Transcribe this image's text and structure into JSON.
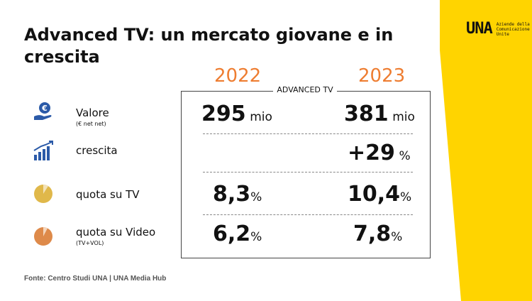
{
  "title": "Advanced TV: un mercato giovane e in crescita",
  "logo": {
    "mark": "UNA",
    "text": "Aziende della Comunicazione Unite"
  },
  "years": {
    "left": "2022",
    "right": "2023"
  },
  "box_label": "ADVANCED TV",
  "rows": [
    {
      "label": "Valore",
      "sub": "(€ net net)",
      "icon": "euro-hand-icon",
      "v2022": "295",
      "u2022": "mio",
      "v2023": "381",
      "u2023": "mio"
    },
    {
      "label": "crescita",
      "sub": "",
      "icon": "growth-bars-icon",
      "v2022": "",
      "u2022": "",
      "v2023": "+29",
      "u2023": "%"
    },
    {
      "label": "quota su TV",
      "sub": "",
      "icon": "pie-yellow-icon",
      "v2022": "8,3",
      "u2022": "%",
      "v2023": "10,4",
      "u2023": "%"
    },
    {
      "label": "quota su Video",
      "sub": "(TV+VOL)",
      "icon": "pie-orange-icon",
      "v2022": "6,2",
      "u2022": "%",
      "v2023": "7,8",
      "u2023": "%"
    }
  ],
  "source": "Fonte: Centro Studi UNA | UNA Media Hub",
  "colors": {
    "accent": "#ee7d31",
    "brand_yellow": "#ffd400",
    "icon_blue": "#2b5aa8",
    "pie_yellow": "#e0b84a",
    "pie_orange": "#de8a4a"
  }
}
